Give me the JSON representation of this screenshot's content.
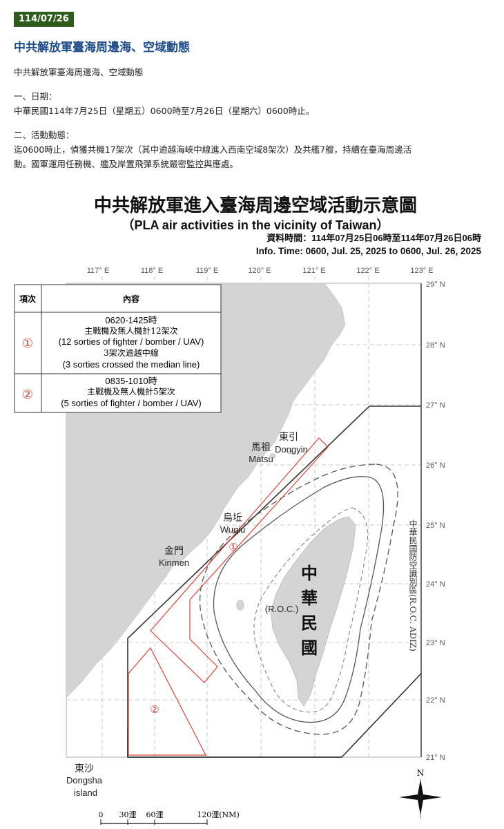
{
  "header": {
    "date_badge": "114/07/26",
    "title": "中共解放軍臺海周邊海、空域動態"
  },
  "content": {
    "subtitle": "中共解放軍臺海周邊海、空域動態",
    "date_heading": "一、日期：",
    "date_text": "中華民國114年7月25日（星期五）0600時至7月26日（星期六）0600時止。",
    "activity_heading": "二、活動動態：",
    "activity_line1": "迄0600時止，偵獲共機17架次（其中逾越海峽中線進入西南空域8架次）及共艦7艘，持續在臺海周邊活",
    "activity_line2": "動。國軍運用任務機、艦及岸置飛彈系統嚴密監控與應處。"
  },
  "map": {
    "title_zh": "中共解放軍進入臺海周邊空域活動示意圖",
    "title_en": "（PLA air activities in the vicinity of Taiwan）",
    "info_zh": "資料時間：114年07月25日06時至114年07月26日06時",
    "info_en": "Info. Time: 0600, Jul. 25, 2025 to 0600, Jul. 26, 2025",
    "lon_labels": [
      "117° E",
      "118° E",
      "119° E",
      "120° E",
      "121° E",
      "122° E",
      "123° E"
    ],
    "lat_labels": [
      "29° N",
      "28° N",
      "27° N",
      "26° N",
      "25° N",
      "24° N",
      "23° N",
      "22° N",
      "21° N"
    ],
    "legend": {
      "col_item": "項次",
      "col_content": "內容",
      "rows": [
        {
          "marker": "①",
          "time": "0620-1425時",
          "line_zh": "主戰機及無人機計12架次",
          "line_en": "(12 sorties of fighter / bomber / UAV)",
          "line2_zh": "3架次逾越中線",
          "line2_en": "(3 sorties crossed the median line)"
        },
        {
          "marker": "②",
          "time": "0835-1010時",
          "line_zh": "主戰機及無人機計5架次",
          "line_en": "(5 sorties of fighter / bomber / UAV)"
        }
      ]
    },
    "places": {
      "dongyin_zh": "東引",
      "dongyin_en": "Dongyin",
      "matsu_zh": "馬祖",
      "matsu_en": "Matsu",
      "wuqiu_zh": "烏坵",
      "wuqiu_en": "Wuqiu",
      "kinmen_zh": "金門",
      "kinmen_en": "Kinmen",
      "roc_zh": [
        "中",
        "華",
        "民",
        "國"
      ],
      "roc_en": "(R.O.C.)",
      "dongsha_zh": "東沙",
      "dongsha_en1": "Dongsha",
      "dongsha_en2": "island"
    },
    "region_markers": [
      "①",
      "②"
    ],
    "adiz_label": "中華民國防空識別區(R.O.C. ADIZ)",
    "north_label": "N",
    "scale": [
      "0",
      "30浬",
      "60浬",
      "120浬(NM)"
    ],
    "colors": {
      "route": "#d9443a",
      "land": "#d4d4d4",
      "border": "#333333"
    }
  }
}
